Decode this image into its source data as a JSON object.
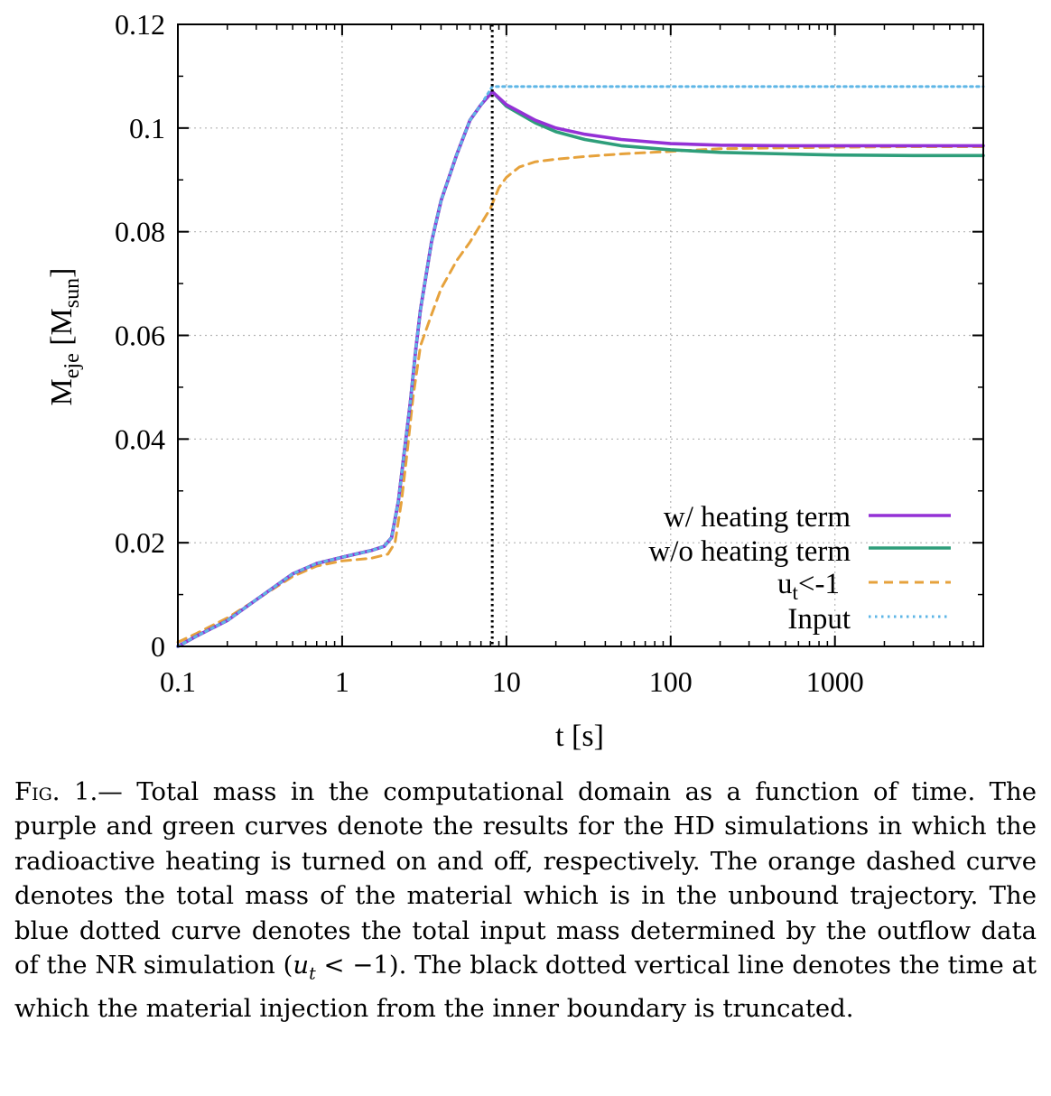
{
  "chart_data": {
    "type": "line",
    "xlabel": "t [s]",
    "ylabel": {
      "base": "M",
      "subscript": "eje",
      "unit_base": "M",
      "unit_subscript": "sun"
    },
    "x_scale": "log",
    "xlim": [
      0.1,
      8000
    ],
    "ylim": [
      0,
      0.12
    ],
    "x_ticks": [
      {
        "value": 0.1,
        "label": "0.1"
      },
      {
        "value": 1,
        "label": "1"
      },
      {
        "value": 10,
        "label": "10"
      },
      {
        "value": 100,
        "label": "100"
      },
      {
        "value": 1000,
        "label": "1000"
      }
    ],
    "y_ticks": [
      {
        "value": 0,
        "label": "0"
      },
      {
        "value": 0.02,
        "label": "0.02"
      },
      {
        "value": 0.04,
        "label": "0.04"
      },
      {
        "value": 0.06,
        "label": "0.06"
      },
      {
        "value": 0.08,
        "label": "0.08"
      },
      {
        "value": 0.1,
        "label": "0.1"
      },
      {
        "value": 0.12,
        "label": "0.12"
      }
    ],
    "grid": true,
    "legend_position": "bottom-right",
    "vertical_line": {
      "x": 8.2,
      "color": "#000000",
      "style": "dotted"
    },
    "series": [
      {
        "name": "w/ heating term",
        "color": "#9431d6",
        "style": "solid",
        "points": [
          [
            0.1,
            0.0
          ],
          [
            0.13,
            0.002
          ],
          [
            0.2,
            0.005
          ],
          [
            0.3,
            0.009
          ],
          [
            0.5,
            0.014
          ],
          [
            0.7,
            0.016
          ],
          [
            1.0,
            0.0172
          ],
          [
            1.5,
            0.0185
          ],
          [
            1.8,
            0.0193
          ],
          [
            2.0,
            0.021
          ],
          [
            2.2,
            0.028
          ],
          [
            2.4,
            0.038
          ],
          [
            2.6,
            0.047
          ],
          [
            2.8,
            0.057
          ],
          [
            3.0,
            0.065
          ],
          [
            3.5,
            0.078
          ],
          [
            4.0,
            0.086
          ],
          [
            5.0,
            0.095
          ],
          [
            6.0,
            0.1015
          ],
          [
            7.0,
            0.1045
          ],
          [
            8.2,
            0.107
          ],
          [
            10,
            0.1045
          ],
          [
            15,
            0.1015
          ],
          [
            20,
            0.1
          ],
          [
            30,
            0.0988
          ],
          [
            50,
            0.0978
          ],
          [
            100,
            0.097
          ],
          [
            200,
            0.0967
          ],
          [
            500,
            0.0966
          ],
          [
            1000,
            0.0966
          ],
          [
            3000,
            0.0966
          ],
          [
            8000,
            0.0966
          ]
        ]
      },
      {
        "name": "w/o heating term",
        "color": "#2e9e7a",
        "style": "solid",
        "points": [
          [
            0.1,
            0.0
          ],
          [
            0.13,
            0.002
          ],
          [
            0.2,
            0.005
          ],
          [
            0.3,
            0.009
          ],
          [
            0.5,
            0.014
          ],
          [
            0.7,
            0.016
          ],
          [
            1.0,
            0.0172
          ],
          [
            1.5,
            0.0185
          ],
          [
            1.8,
            0.0193
          ],
          [
            2.0,
            0.021
          ],
          [
            2.2,
            0.028
          ],
          [
            2.4,
            0.038
          ],
          [
            2.6,
            0.047
          ],
          [
            2.8,
            0.057
          ],
          [
            3.0,
            0.065
          ],
          [
            3.5,
            0.078
          ],
          [
            4.0,
            0.086
          ],
          [
            5.0,
            0.095
          ],
          [
            6.0,
            0.1015
          ],
          [
            7.0,
            0.1045
          ],
          [
            8.2,
            0.107
          ],
          [
            10,
            0.1042
          ],
          [
            15,
            0.101
          ],
          [
            20,
            0.0993
          ],
          [
            30,
            0.0978
          ],
          [
            50,
            0.0966
          ],
          [
            100,
            0.0958
          ],
          [
            200,
            0.0953
          ],
          [
            500,
            0.095
          ],
          [
            1000,
            0.0948
          ],
          [
            3000,
            0.0947
          ],
          [
            8000,
            0.0947
          ]
        ]
      },
      {
        "name": "u_t<-1",
        "legend_base": "u",
        "legend_subscript": "t",
        "legend_rest": "<-1",
        "color": "#e6a23c",
        "style": "dashed",
        "points": [
          [
            0.1,
            0.0008
          ],
          [
            0.13,
            0.0025
          ],
          [
            0.2,
            0.0055
          ],
          [
            0.3,
            0.009
          ],
          [
            0.5,
            0.0135
          ],
          [
            0.7,
            0.0155
          ],
          [
            1.0,
            0.0165
          ],
          [
            1.5,
            0.017
          ],
          [
            1.9,
            0.0178
          ],
          [
            2.1,
            0.02
          ],
          [
            2.3,
            0.028
          ],
          [
            2.5,
            0.038
          ],
          [
            2.7,
            0.048
          ],
          [
            3.0,
            0.058
          ],
          [
            3.5,
            0.064
          ],
          [
            4.0,
            0.069
          ],
          [
            5.0,
            0.0745
          ],
          [
            6.0,
            0.078
          ],
          [
            7.0,
            0.0815
          ],
          [
            8.0,
            0.0845
          ],
          [
            9.0,
            0.0885
          ],
          [
            10,
            0.0905
          ],
          [
            12,
            0.0925
          ],
          [
            15,
            0.0935
          ],
          [
            20,
            0.094
          ],
          [
            30,
            0.0945
          ],
          [
            50,
            0.095
          ],
          [
            100,
            0.0955
          ],
          [
            200,
            0.096
          ],
          [
            500,
            0.0962
          ],
          [
            1000,
            0.0963
          ],
          [
            3000,
            0.0964
          ],
          [
            8000,
            0.0964
          ]
        ]
      },
      {
        "name": "Input",
        "color": "#5eb6e6",
        "style": "dotted",
        "points": [
          [
            0.1,
            0.0
          ],
          [
            0.13,
            0.002
          ],
          [
            0.2,
            0.005
          ],
          [
            0.3,
            0.009
          ],
          [
            0.5,
            0.014
          ],
          [
            0.7,
            0.016
          ],
          [
            1.0,
            0.0172
          ],
          [
            1.5,
            0.0185
          ],
          [
            1.8,
            0.0193
          ],
          [
            2.0,
            0.021
          ],
          [
            2.2,
            0.028
          ],
          [
            2.4,
            0.038
          ],
          [
            2.6,
            0.047
          ],
          [
            2.8,
            0.057
          ],
          [
            3.0,
            0.065
          ],
          [
            3.5,
            0.078
          ],
          [
            4.0,
            0.086
          ],
          [
            5.0,
            0.095
          ],
          [
            6.0,
            0.1015
          ],
          [
            7.0,
            0.1045
          ],
          [
            8.2,
            0.108
          ],
          [
            10,
            0.108
          ],
          [
            100,
            0.108
          ],
          [
            1000,
            0.108
          ],
          [
            8000,
            0.108
          ]
        ]
      }
    ]
  },
  "caption": {
    "label": "Fig. 1.",
    "dash": "—",
    "text_1": " Total mass in the computational domain as a function of time. The purple and green curves denote the results for the HD simulations in which the radioactive heating is turned on and off, respectively.  The orange dashed curve denotes the total mass of the material which is in the unbound trajectory. The blue dotted curve denotes the total input mass determined by the outflow data of the NR simulation (",
    "math": "u",
    "math_sub": "t",
    "math_rest": " < −1",
    "text_2": ").  The black dotted vertical line denotes the time at which the material injection from the inner boundary is truncated."
  }
}
